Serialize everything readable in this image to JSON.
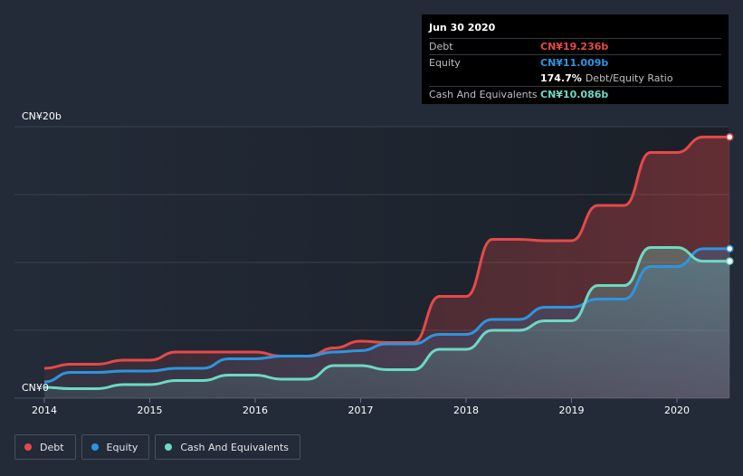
{
  "chart_data": {
    "type": "area",
    "title": "",
    "ylabel_top": "CN¥20b",
    "ylabel_bottom": "CN¥0",
    "ylim": [
      0,
      20
    ],
    "xlim": [
      2014,
      2020.5
    ],
    "x_ticks": [
      "2014",
      "2015",
      "2016",
      "2017",
      "2018",
      "2019",
      "2020"
    ],
    "series": [
      {
        "name": "Debt",
        "color": "#e64949",
        "points": [
          [
            2014.0,
            2.2
          ],
          [
            2014.25,
            2.5
          ],
          [
            2014.5,
            2.5
          ],
          [
            2014.75,
            2.8
          ],
          [
            2015.0,
            2.8
          ],
          [
            2015.25,
            3.4
          ],
          [
            2015.5,
            3.4
          ],
          [
            2015.75,
            3.4
          ],
          [
            2016.0,
            3.4
          ],
          [
            2016.25,
            3.1
          ],
          [
            2016.5,
            3.1
          ],
          [
            2016.75,
            3.7
          ],
          [
            2017.0,
            4.2
          ],
          [
            2017.25,
            4.1
          ],
          [
            2017.5,
            4.1
          ],
          [
            2017.75,
            7.5
          ],
          [
            2018.0,
            7.5
          ],
          [
            2018.25,
            11.7
          ],
          [
            2018.5,
            11.7
          ],
          [
            2018.75,
            11.6
          ],
          [
            2019.0,
            11.6
          ],
          [
            2019.25,
            14.2
          ],
          [
            2019.5,
            14.2
          ],
          [
            2019.75,
            18.1
          ],
          [
            2020.0,
            18.1
          ],
          [
            2020.25,
            19.24
          ],
          [
            2020.5,
            19.24
          ]
        ]
      },
      {
        "name": "Equity",
        "color": "#2d95e0",
        "points": [
          [
            2014.0,
            1.2
          ],
          [
            2014.25,
            1.9
          ],
          [
            2014.5,
            1.9
          ],
          [
            2014.75,
            2.0
          ],
          [
            2015.0,
            2.0
          ],
          [
            2015.25,
            2.2
          ],
          [
            2015.5,
            2.2
          ],
          [
            2015.75,
            2.9
          ],
          [
            2016.0,
            2.9
          ],
          [
            2016.25,
            3.1
          ],
          [
            2016.5,
            3.1
          ],
          [
            2016.75,
            3.4
          ],
          [
            2017.0,
            3.5
          ],
          [
            2017.25,
            4.0
          ],
          [
            2017.5,
            4.0
          ],
          [
            2017.75,
            4.7
          ],
          [
            2018.0,
            4.7
          ],
          [
            2018.25,
            5.8
          ],
          [
            2018.5,
            5.8
          ],
          [
            2018.75,
            6.7
          ],
          [
            2019.0,
            6.7
          ],
          [
            2019.25,
            7.3
          ],
          [
            2019.5,
            7.3
          ],
          [
            2019.75,
            9.7
          ],
          [
            2020.0,
            9.7
          ],
          [
            2020.25,
            11.01
          ],
          [
            2020.5,
            11.01
          ]
        ]
      },
      {
        "name": "Cash And Equivalents",
        "color": "#6dd9c4",
        "points": [
          [
            2014.0,
            0.8
          ],
          [
            2014.25,
            0.7
          ],
          [
            2014.5,
            0.7
          ],
          [
            2014.75,
            1.0
          ],
          [
            2015.0,
            1.0
          ],
          [
            2015.25,
            1.3
          ],
          [
            2015.5,
            1.3
          ],
          [
            2015.75,
            1.7
          ],
          [
            2016.0,
            1.7
          ],
          [
            2016.25,
            1.4
          ],
          [
            2016.5,
            1.4
          ],
          [
            2016.75,
            2.4
          ],
          [
            2017.0,
            2.4
          ],
          [
            2017.25,
            2.1
          ],
          [
            2017.5,
            2.1
          ],
          [
            2017.75,
            3.6
          ],
          [
            2018.0,
            3.6
          ],
          [
            2018.25,
            5.0
          ],
          [
            2018.5,
            5.0
          ],
          [
            2018.75,
            5.7
          ],
          [
            2019.0,
            5.7
          ],
          [
            2019.25,
            8.3
          ],
          [
            2019.5,
            8.3
          ],
          [
            2019.75,
            11.1
          ],
          [
            2020.0,
            11.1
          ],
          [
            2020.25,
            10.09
          ],
          [
            2020.5,
            10.09
          ]
        ]
      }
    ],
    "legend": [
      "Debt",
      "Equity",
      "Cash And Equivalents"
    ]
  },
  "tooltip": {
    "date": "Jun 30 2020",
    "debt_label": "Debt",
    "debt_value": "CN¥19.236b",
    "equity_label": "Equity",
    "equity_value": "CN¥11.009b",
    "ratio_value": "174.7%",
    "ratio_label": "Debt/Equity Ratio",
    "cash_label": "Cash And Equivalents",
    "cash_value": "CN¥10.086b"
  },
  "legend": {
    "debt": "Debt",
    "equity": "Equity",
    "cash": "Cash And Equivalents"
  }
}
